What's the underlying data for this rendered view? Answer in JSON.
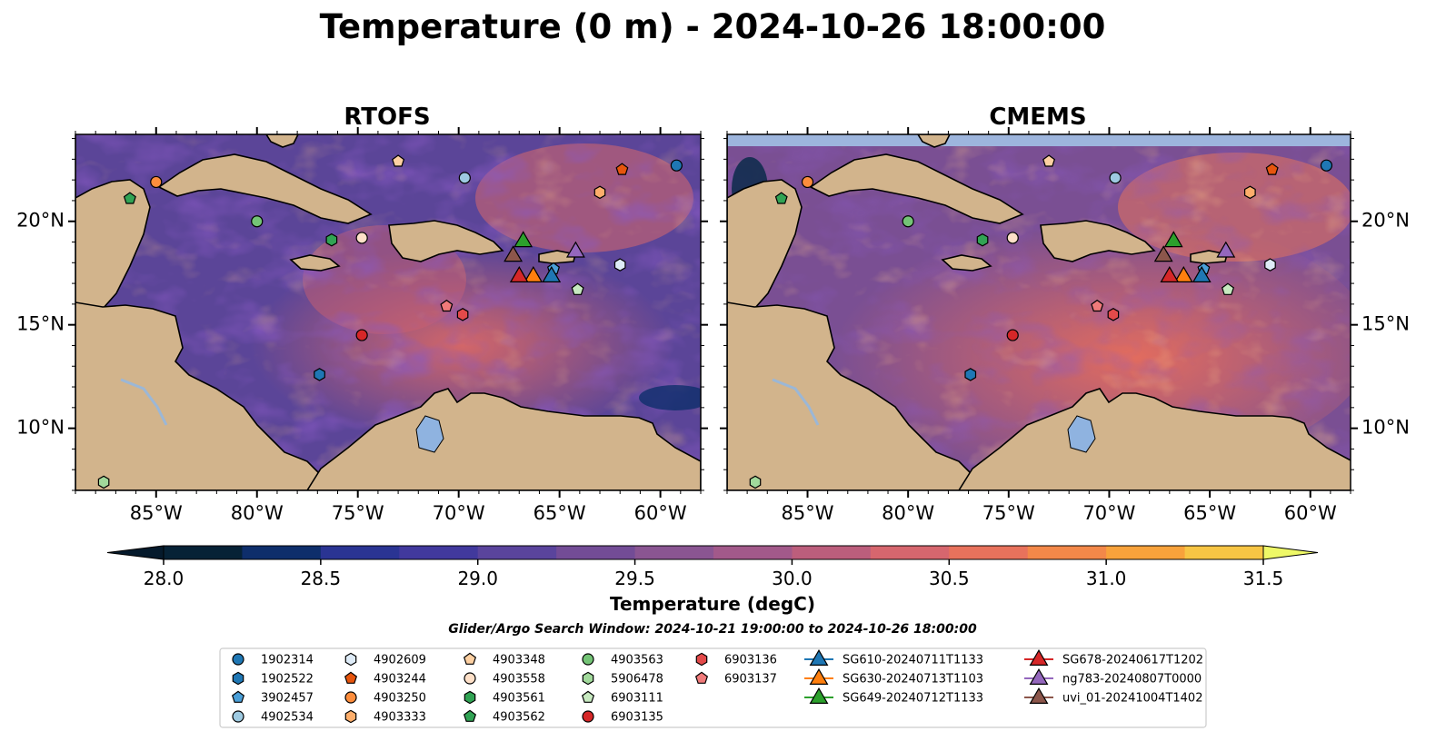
{
  "title": "Temperature (0 m) - 2024-10-26 18:00:00",
  "panels": [
    {
      "title": "RTOFS"
    },
    {
      "title": "CMEMS"
    }
  ],
  "chart_data": {
    "type": "heatmap",
    "title": "Temperature (0 m) - 2024-10-26 18:00:00",
    "map_extent": {
      "lon": [
        -89,
        -58
      ],
      "lat": [
        7,
        24.2
      ]
    },
    "lon_ticks": [
      -85,
      -80,
      -75,
      -70,
      -65,
      -60
    ],
    "lon_tick_labels": [
      "85°W",
      "80°W",
      "75°W",
      "70°W",
      "65°W",
      "60°W"
    ],
    "lat_ticks": [
      10,
      15,
      20
    ],
    "lat_tick_labels": [
      "10°N",
      "15°N",
      "20°N"
    ],
    "colorbar": {
      "label": "Temperature (degC)",
      "min": 28.0,
      "max": 31.5,
      "step": 0.25,
      "ticks": [
        28.0,
        28.5,
        29.0,
        29.5,
        30.0,
        30.5,
        31.0,
        31.5
      ],
      "tick_labels": [
        "28.0",
        "28.5",
        "29.0",
        "29.5",
        "30.0",
        "30.5",
        "31.0",
        "31.5"
      ],
      "colors": [
        "#062236",
        "#0e2e6b",
        "#2a3493",
        "#41399d",
        "#5a449c",
        "#734c96",
        "#8a5592",
        "#a2598a",
        "#bc5e7c",
        "#d6666e",
        "#e8725c",
        "#f38849",
        "#f8a23b",
        "#f7c544",
        "#f4e658"
      ],
      "under_color": "#051a2c",
      "over_color": "#eef867"
    },
    "search_window": "Glider/Argo Search Window: 2024-10-21 19:00:00 to 2024-10-26 18:00:00",
    "argo_floats": [
      {
        "id": "1902314",
        "marker": "circle",
        "color": "#1f77b4",
        "lon": -59.2,
        "lat": 22.7
      },
      {
        "id": "1902522",
        "marker": "hexagon",
        "color": "#1f77b4",
        "lon": -76.9,
        "lat": 12.6
      },
      {
        "id": "3902457",
        "marker": "pentagon",
        "color": "#4a9fd8",
        "lon": -65.3,
        "lat": 17.7
      },
      {
        "id": "4902534",
        "marker": "circle",
        "color": "#9ecae1",
        "lon": -69.7,
        "lat": 22.1
      },
      {
        "id": "4902609",
        "marker": "hexagon",
        "color": "#deebf7",
        "lon": -62.0,
        "lat": 17.9
      },
      {
        "id": "4903244",
        "marker": "pentagon",
        "color": "#e6550d",
        "lon": -61.9,
        "lat": 22.5
      },
      {
        "id": "4903250",
        "marker": "circle",
        "color": "#fd8d3c",
        "lon": -85.0,
        "lat": 21.9
      },
      {
        "id": "4903333",
        "marker": "hexagon",
        "color": "#fdae6b",
        "lon": -63.0,
        "lat": 21.4
      },
      {
        "id": "4903348",
        "marker": "pentagon",
        "color": "#fdd0a2",
        "lon": -73.0,
        "lat": 22.9
      },
      {
        "id": "4903558",
        "marker": "circle",
        "color": "#fee0c8",
        "lon": -74.8,
        "lat": 19.2
      },
      {
        "id": "4903561",
        "marker": "hexagon",
        "color": "#31a354",
        "lon": -76.3,
        "lat": 19.1
      },
      {
        "id": "4903562",
        "marker": "pentagon",
        "color": "#31a354",
        "lon": -86.3,
        "lat": 21.1
      },
      {
        "id": "4903563",
        "marker": "circle",
        "color": "#74c476",
        "lon": -80.0,
        "lat": 20.0
      },
      {
        "id": "5906478",
        "marker": "hexagon",
        "color": "#a1d99b",
        "lon": -87.6,
        "lat": 7.4
      },
      {
        "id": "6903111",
        "marker": "pentagon",
        "color": "#c7e9c0",
        "lon": -64.1,
        "lat": 16.7
      },
      {
        "id": "6903135",
        "marker": "circle",
        "color": "#d62728",
        "lon": -74.8,
        "lat": 14.5
      },
      {
        "id": "6903136",
        "marker": "hexagon",
        "color": "#e34a4a",
        "lon": -69.8,
        "lat": 15.5
      },
      {
        "id": "6903137",
        "marker": "pentagon",
        "color": "#f07a7a",
        "lon": -70.6,
        "lat": 15.9
      }
    ],
    "gliders": [
      {
        "id": "SG610-20240711T1133",
        "color": "#1f77b4",
        "lon": -65.4,
        "lat": 17.4
      },
      {
        "id": "SG630-20240713T1103",
        "color": "#ff7f0e",
        "lon": -66.3,
        "lat": 17.4
      },
      {
        "id": "SG649-20240712T1133",
        "color": "#2ca02c",
        "lon": -66.8,
        "lat": 19.1
      },
      {
        "id": "SG678-20240617T1202",
        "color": "#d62728",
        "lon": -67.0,
        "lat": 17.4
      },
      {
        "id": "ng783-20240807T0000",
        "color": "#9467bd",
        "lon": -64.2,
        "lat": 18.6
      },
      {
        "id": "uvi_01-20241004T1402",
        "color": "#8c564b",
        "lon": -67.3,
        "lat": 18.4
      }
    ]
  }
}
